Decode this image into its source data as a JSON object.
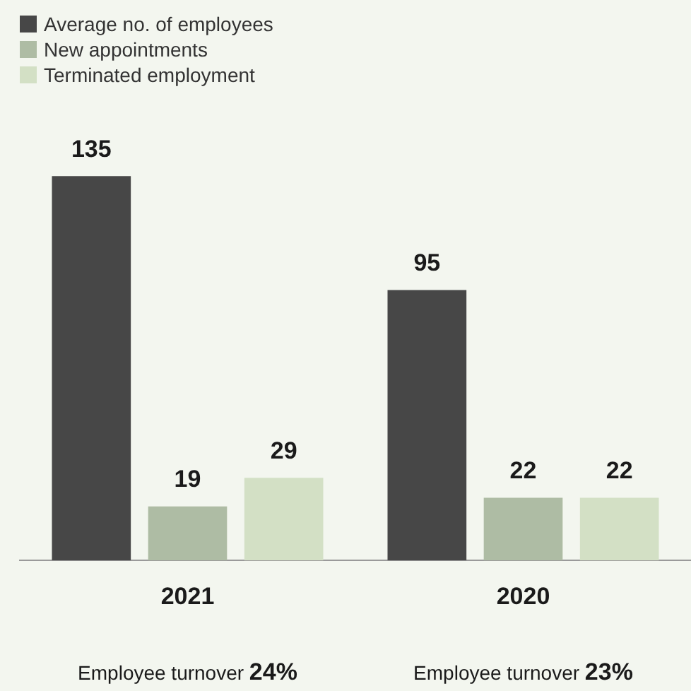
{
  "chart_data": {
    "type": "bar",
    "categories": [
      "2021",
      "2020"
    ],
    "series": [
      {
        "name": "Average no. of employees",
        "color": "#474747",
        "values": [
          135,
          95
        ]
      },
      {
        "name": "New appointments",
        "color": "#aebca4",
        "values": [
          19,
          22
        ]
      },
      {
        "name": "Terminated employment",
        "color": "#d3e0c5",
        "values": [
          29,
          22
        ]
      }
    ],
    "data_labels": true,
    "legend": "top left",
    "grid": false,
    "annotations": [
      "Employee turnover 24%",
      "Employee turnover 23%"
    ]
  }
}
